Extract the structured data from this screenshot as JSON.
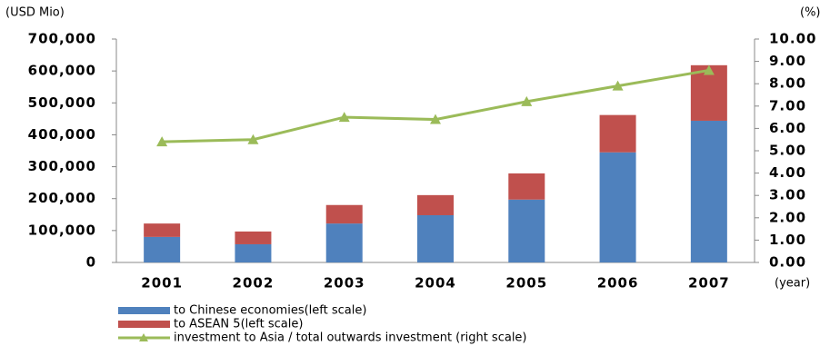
{
  "chart_data": {
    "type": "bar",
    "stacked": true,
    "y_unit_label": "(USD Mio)",
    "y2_unit_label": "(%)",
    "x_unit_label": "(year)",
    "categories": [
      "2001",
      "2002",
      "2003",
      "2004",
      "2005",
      "2006",
      "2007"
    ],
    "series": [
      {
        "name": "to Chinese economies(left scale)",
        "color": "#4f81bd",
        "type": "bar",
        "values": [
          80000,
          57000,
          122000,
          148000,
          197000,
          345000,
          444000
        ]
      },
      {
        "name": "to ASEAN 5(left scale)",
        "color": "#c0504d",
        "type": "bar",
        "values": [
          42000,
          40000,
          58000,
          63000,
          82000,
          117000,
          174000
        ]
      },
      {
        "name": "investment to Asia / total outwards investment (right scale)",
        "color": "#9bbb59",
        "type": "line",
        "axis": "y2",
        "values": [
          5.4,
          5.5,
          6.5,
          6.4,
          7.2,
          7.9,
          8.6
        ]
      }
    ],
    "ylim": [
      0,
      700000
    ],
    "yticks": [
      0,
      {
        "value": 100000,
        "label": "100,000"
      },
      {
        "value": 200000,
        "label": "200,000"
      },
      {
        "value": 300000,
        "label": "300,000"
      },
      {
        "value": 400000,
        "label": "400,000"
      },
      {
        "value": 500000,
        "label": "500,000"
      },
      {
        "value": 600000,
        "label": "600,000"
      },
      {
        "value": 700000,
        "label": "700,000"
      }
    ],
    "y2lim": [
      0,
      10
    ],
    "y2ticks": [
      {
        "value": 0,
        "label": "0.00"
      },
      {
        "value": 1,
        "label": "1.00"
      },
      {
        "value": 2,
        "label": "2.00"
      },
      {
        "value": 3,
        "label": "3.00"
      },
      {
        "value": 4,
        "label": "4.00"
      },
      {
        "value": 5,
        "label": "5.00"
      },
      {
        "value": 6,
        "label": "6.00"
      },
      {
        "value": 7,
        "label": "7.00"
      },
      {
        "value": 8,
        "label": "8.00"
      },
      {
        "value": 9,
        "label": "9.00"
      },
      {
        "value": 10,
        "label": "10.00"
      }
    ],
    "grid": false,
    "legend": "bottom"
  }
}
